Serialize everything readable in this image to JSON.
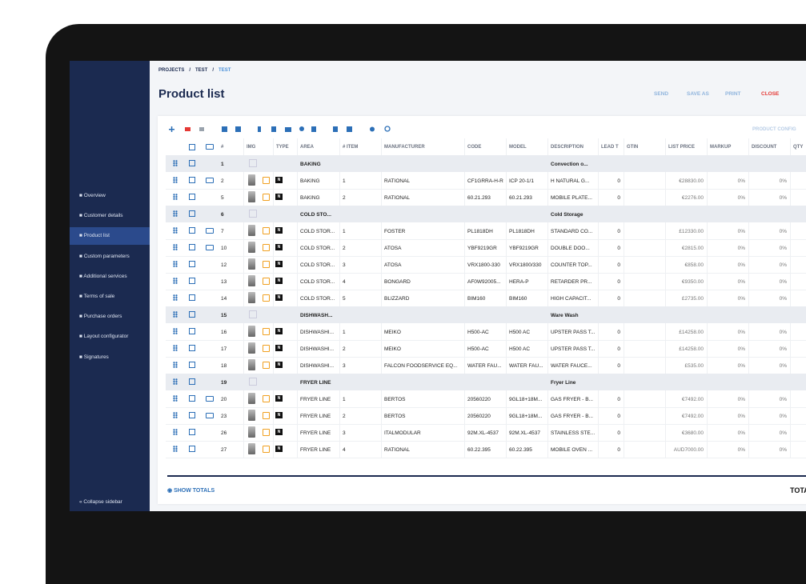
{
  "breadcrumb": [
    "PROJECTS",
    "/",
    "TEST",
    "/",
    "TEST"
  ],
  "title": "Product list",
  "actions": [
    "SEND",
    "SAVE AS",
    "PRINT",
    "CLOSE"
  ],
  "sidebar": {
    "items": [
      "Overview",
      "Customer details",
      "Product list",
      "Custom parameters",
      "Additional services",
      "Terms of sale",
      "Purchase orders",
      "Layout configurator",
      "Signatures"
    ],
    "active": 2,
    "collapse": "Collapse sidebar"
  },
  "toolbar_right": "PRODUCT CONFIG",
  "columns": [
    "#",
    "IMG",
    "TYPE",
    "AREA",
    "# ITEM",
    "MANUFACTURER",
    "CODE",
    "MODEL",
    "DESCRIPTION",
    "LEAD T",
    "GTIN",
    "LIST PRICE",
    "MARKUP",
    "DISCOUNT",
    "QTY"
  ],
  "groups": [
    {
      "number": 1,
      "area": "BAKING",
      "description": "Convection o...",
      "items": [
        {
          "number": 2,
          "folder": true,
          "type": "N",
          "area": "BAKING",
          "item": 1,
          "manufacturer": "RATIONAL",
          "code": "CF1GRRA-H-R",
          "model": "ICP 20-1/1",
          "description": "H NATURAL G...",
          "lead": 0,
          "price": "€28830.00",
          "markup": "0%",
          "discount": "0%"
        },
        {
          "number": 5,
          "folder": false,
          "type": "N",
          "area": "BAKING",
          "item": 2,
          "manufacturer": "RATIONAL",
          "code": "60.21.293",
          "model": "60.21.293",
          "description": "MOBILE PLATE...",
          "lead": 0,
          "price": "€2276.00",
          "markup": "0%",
          "discount": "0%"
        }
      ]
    },
    {
      "number": 6,
      "area": "COLD STO...",
      "description": "Cold Storage",
      "items": [
        {
          "number": 7,
          "folder": true,
          "type": "N",
          "area": "COLD STOR...",
          "item": 1,
          "manufacturer": "FOSTER",
          "code": "PL1818DH",
          "model": "PL1818DH",
          "description": "STANDARD CO...",
          "lead": 0,
          "price": "£12330.00",
          "markup": "0%",
          "discount": "0%"
        },
        {
          "number": 10,
          "folder": true,
          "type": "N",
          "area": "COLD STOR...",
          "item": 2,
          "manufacturer": "ATOSA",
          "code": "YBF9219GR",
          "model": "YBF9219GR",
          "description": "DOUBLE DOO...",
          "lead": 0,
          "price": "€2815.00",
          "markup": "0%",
          "discount": "0%"
        },
        {
          "number": 12,
          "folder": false,
          "type": "N",
          "area": "COLD STOR...",
          "item": 3,
          "manufacturer": "ATOSA",
          "code": "VRX1800-330",
          "model": "VRX1800/330",
          "description": "COUNTER TOP...",
          "lead": 0,
          "price": "€858.00",
          "markup": "0%",
          "discount": "0%"
        },
        {
          "number": 13,
          "folder": false,
          "type": "N",
          "area": "COLD STOR...",
          "item": 4,
          "manufacturer": "BONGARD",
          "code": "AF0W92005...",
          "model": "HERA-P",
          "description": "RETARDER PR...",
          "lead": 0,
          "price": "€9350.00",
          "markup": "0%",
          "discount": "0%"
        },
        {
          "number": 14,
          "folder": false,
          "type": "N",
          "area": "COLD STOR...",
          "item": 5,
          "manufacturer": "BLIZZARD",
          "code": "BIM160",
          "model": "BIM160",
          "description": "HIGH CAPACIT...",
          "lead": 0,
          "price": "£2735.00",
          "markup": "0%",
          "discount": "0%"
        }
      ]
    },
    {
      "number": 15,
      "area": "DISHWASH...",
      "description": "Ware Wash",
      "items": [
        {
          "number": 16,
          "folder": false,
          "type": "N",
          "area": "DISHWASHI...",
          "item": 1,
          "manufacturer": "MEIKO",
          "code": "H500-AC",
          "model": "H500 AC",
          "description": "UPSTER PASS T...",
          "lead": 0,
          "price": "£14258.00",
          "markup": "0%",
          "discount": "0%"
        },
        {
          "number": 17,
          "folder": false,
          "type": "N",
          "area": "DISHWASHI...",
          "item": 2,
          "manufacturer": "MEIKO",
          "code": "H500-AC",
          "model": "H500 AC",
          "description": "UPSTER PASS T...",
          "lead": 0,
          "price": "£14258.00",
          "markup": "0%",
          "discount": "0%"
        },
        {
          "number": 18,
          "folder": false,
          "type": "N",
          "area": "DISHWASHI...",
          "item": 3,
          "manufacturer": "FALCON FOODSERVICE EQ...",
          "code": "WATER FAU...",
          "model": "WATER FAU...",
          "description": "WATER FAUCE...",
          "lead": 0,
          "price": "£535.00",
          "markup": "0%",
          "discount": "0%"
        }
      ]
    },
    {
      "number": 19,
      "area": "FRYER LINE",
      "description": "Fryer Line",
      "items": [
        {
          "number": 20,
          "folder": true,
          "type": "N",
          "area": "FRYER LINE",
          "item": 1,
          "manufacturer": "BERTOS",
          "code": "20560220",
          "model": "9GL18+18M...",
          "description": "GAS FRYER - B...",
          "lead": 0,
          "price": "€7492.00",
          "markup": "0%",
          "discount": "0%"
        },
        {
          "number": 23,
          "folder": true,
          "type": "N",
          "area": "FRYER LINE",
          "item": 2,
          "manufacturer": "BERTOS",
          "code": "20560220",
          "model": "9GL18+18M...",
          "description": "GAS FRYER - B...",
          "lead": 0,
          "price": "€7492.00",
          "markup": "0%",
          "discount": "0%"
        },
        {
          "number": 26,
          "folder": false,
          "type": "N",
          "area": "FRYER LINE",
          "item": 3,
          "manufacturer": "ITALMODULAR",
          "code": "92M.XL-4537",
          "model": "92M.XL-4537",
          "description": "STAINLESS STE...",
          "lead": 0,
          "price": "€3680.00",
          "markup": "0%",
          "discount": "0%"
        },
        {
          "number": 27,
          "folder": false,
          "type": "N",
          "area": "FRYER LINE",
          "item": 4,
          "manufacturer": "RATIONAL",
          "code": "60.22.395",
          "model": "60.22.395",
          "description": "MOBILE OVEN ...",
          "lead": 0,
          "price": "AUD7000.00",
          "markup": "0%",
          "discount": "0%"
        }
      ]
    }
  ],
  "show_totals": "SHOW TOTALS",
  "total": "TOTA"
}
